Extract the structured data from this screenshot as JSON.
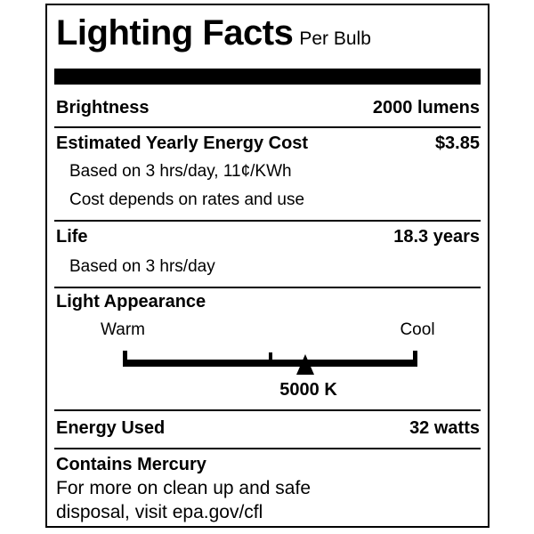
{
  "title": {
    "main": "Lighting Facts",
    "qualifier": "Per Bulb"
  },
  "brightness": {
    "label": "Brightness",
    "value": "2000 lumens"
  },
  "energy_cost": {
    "label": "Estimated Yearly Energy Cost",
    "value": "$3.85",
    "note1": "Based on 3 hrs/day, 11¢/KWh",
    "note2": "Cost depends on rates and use"
  },
  "life": {
    "label": "Life",
    "value": "18.3 years",
    "note": "Based on 3 hrs/day"
  },
  "light_appearance": {
    "label": "Light Appearance",
    "warm_label": "Warm",
    "cool_label": "Cool",
    "kelvin_value": "5000 K",
    "marker_pct": 62,
    "kelvin_pct": 63,
    "midtick_pct": 50
  },
  "energy_used": {
    "label": "Energy Used",
    "value": "32 watts"
  },
  "mercury": {
    "label": "Contains Mercury",
    "line1": "For more on clean up and safe",
    "line2": "disposal, visit epa.gov/cfl"
  },
  "colors": {
    "ink": "#000000",
    "background": "#ffffff"
  }
}
